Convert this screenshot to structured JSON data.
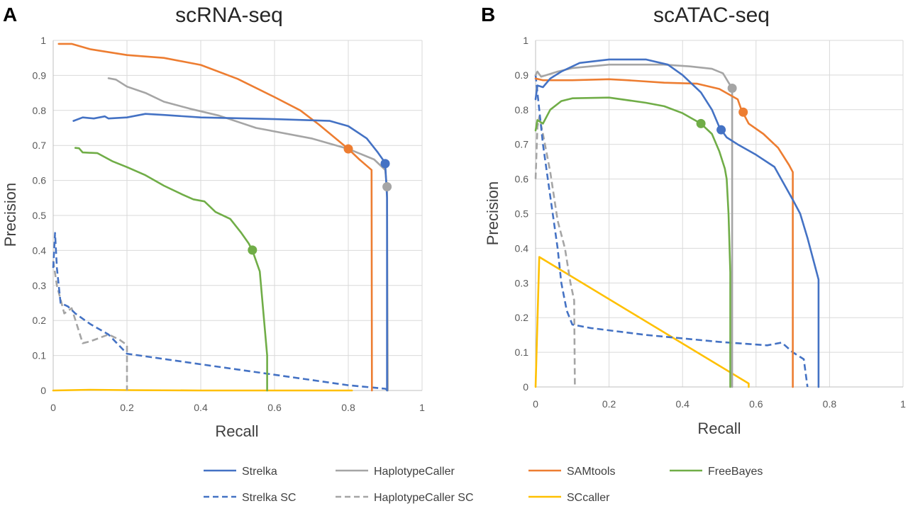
{
  "chart_data": [
    {
      "type": "line",
      "panel": "A",
      "title": "scRNA-seq",
      "xlabel": "Recall",
      "ylabel": "Precision",
      "xlim": [
        0,
        1
      ],
      "ylim": [
        0,
        1
      ],
      "x_ticks": [
        "0",
        "0.2",
        "0.4",
        "0.6",
        "0.8",
        "1"
      ],
      "y_ticks": [
        "0",
        "0.1",
        "0.2",
        "0.3",
        "0.4",
        "0.5",
        "0.6",
        "0.7",
        "0.8",
        "0.9",
        "1"
      ],
      "series": [
        {
          "name": "Strelka",
          "color": "#4472c4",
          "dash": false,
          "points": [
            [
              0.055,
              0.77
            ],
            [
              0.08,
              0.78
            ],
            [
              0.11,
              0.777
            ],
            [
              0.14,
              0.783
            ],
            [
              0.15,
              0.777
            ],
            [
              0.2,
              0.78
            ],
            [
              0.25,
              0.79
            ],
            [
              0.3,
              0.787
            ],
            [
              0.4,
              0.78
            ],
            [
              0.6,
              0.775
            ],
            [
              0.75,
              0.77
            ],
            [
              0.8,
              0.755
            ],
            [
              0.85,
              0.72
            ],
            [
              0.88,
              0.68
            ],
            [
              0.9,
              0.65
            ],
            [
              0.905,
              0.55
            ],
            [
              0.905,
              0.0
            ]
          ],
          "marker": [
            0.9,
            0.648
          ]
        },
        {
          "name": "HaplotypeCaller",
          "color": "#a5a5a5",
          "dash": false,
          "points": [
            [
              0.15,
              0.892
            ],
            [
              0.17,
              0.888
            ],
            [
              0.2,
              0.868
            ],
            [
              0.25,
              0.85
            ],
            [
              0.3,
              0.825
            ],
            [
              0.37,
              0.805
            ],
            [
              0.45,
              0.785
            ],
            [
              0.55,
              0.75
            ],
            [
              0.7,
              0.72
            ],
            [
              0.8,
              0.69
            ],
            [
              0.87,
              0.66
            ],
            [
              0.9,
              0.63
            ],
            [
              0.905,
              0.58
            ],
            [
              0.907,
              0.0
            ]
          ],
          "marker": [
            0.905,
            0.582
          ]
        },
        {
          "name": "SAMtools",
          "color": "#ed7d31",
          "dash": false,
          "points": [
            [
              0.015,
              0.99
            ],
            [
              0.05,
              0.99
            ],
            [
              0.1,
              0.975
            ],
            [
              0.2,
              0.958
            ],
            [
              0.3,
              0.95
            ],
            [
              0.4,
              0.93
            ],
            [
              0.5,
              0.89
            ],
            [
              0.6,
              0.838
            ],
            [
              0.67,
              0.8
            ],
            [
              0.72,
              0.76
            ],
            [
              0.8,
              0.69
            ],
            [
              0.83,
              0.66
            ],
            [
              0.863,
              0.63
            ],
            [
              0.864,
              0.0
            ]
          ],
          "marker": [
            0.8,
            0.69
          ]
        },
        {
          "name": "FreeBayes",
          "color": "#70ad47",
          "dash": false,
          "points": [
            [
              0.06,
              0.693
            ],
            [
              0.07,
              0.692
            ],
            [
              0.08,
              0.68
            ],
            [
              0.12,
              0.678
            ],
            [
              0.16,
              0.655
            ],
            [
              0.2,
              0.638
            ],
            [
              0.25,
              0.615
            ],
            [
              0.3,
              0.585
            ],
            [
              0.35,
              0.56
            ],
            [
              0.38,
              0.546
            ],
            [
              0.41,
              0.54
            ],
            [
              0.44,
              0.51
            ],
            [
              0.48,
              0.49
            ],
            [
              0.51,
              0.45
            ],
            [
              0.53,
              0.42
            ],
            [
              0.54,
              0.4
            ],
            [
              0.56,
              0.34
            ],
            [
              0.57,
              0.22
            ],
            [
              0.58,
              0.1
            ],
            [
              0.58,
              0.0
            ]
          ],
          "marker": [
            0.54,
            0.401
          ]
        },
        {
          "name": "Strelka SC",
          "color": "#4472c4",
          "dash": true,
          "points": [
            [
              0.0,
              0.35
            ],
            [
              0.005,
              0.45
            ],
            [
              0.01,
              0.35
            ],
            [
              0.015,
              0.3
            ],
            [
              0.02,
              0.25
            ],
            [
              0.04,
              0.24
            ],
            [
              0.06,
              0.22
            ],
            [
              0.1,
              0.19
            ],
            [
              0.15,
              0.16
            ],
            [
              0.2,
              0.105
            ],
            [
              0.4,
              0.075
            ],
            [
              0.6,
              0.045
            ],
            [
              0.8,
              0.015
            ],
            [
              0.9,
              0.005
            ],
            [
              0.91,
              0.0
            ]
          ],
          "marker": null
        },
        {
          "name": "HaplotypeCaller SC",
          "color": "#a5a5a5",
          "dash": true,
          "points": [
            [
              0.0,
              0.37
            ],
            [
              0.01,
              0.3
            ],
            [
              0.03,
              0.22
            ],
            [
              0.05,
              0.235
            ],
            [
              0.08,
              0.135
            ],
            [
              0.1,
              0.14
            ],
            [
              0.15,
              0.16
            ],
            [
              0.18,
              0.145
            ],
            [
              0.2,
              0.13
            ],
            [
              0.2,
              0.0
            ]
          ],
          "marker": null
        },
        {
          "name": "SCcaller",
          "color": "#ffc000",
          "dash": false,
          "points": [
            [
              0.0,
              0.0
            ],
            [
              0.1,
              0.002
            ],
            [
              0.2,
              0.001
            ],
            [
              0.4,
              0.0
            ],
            [
              0.81,
              0.0
            ]
          ],
          "marker": null
        }
      ]
    },
    {
      "type": "line",
      "panel": "B",
      "title": "scATAC-seq",
      "xlabel": "Recall",
      "ylabel": "Precision",
      "xlim": [
        0,
        1
      ],
      "ylim": [
        0,
        1
      ],
      "x_ticks": [
        "0",
        "0.2",
        "0.4",
        "0.6",
        "0.8",
        "1"
      ],
      "y_ticks": [
        "0",
        "0.1",
        "0.2",
        "0.3",
        "0.4",
        "0.5",
        "0.6",
        "0.7",
        "0.8",
        "0.9",
        "1"
      ],
      "series": [
        {
          "name": "Strelka",
          "color": "#4472c4",
          "dash": false,
          "points": [
            [
              0.0,
              0.83
            ],
            [
              0.005,
              0.87
            ],
            [
              0.02,
              0.865
            ],
            [
              0.04,
              0.89
            ],
            [
              0.07,
              0.91
            ],
            [
              0.12,
              0.935
            ],
            [
              0.2,
              0.945
            ],
            [
              0.3,
              0.945
            ],
            [
              0.36,
              0.93
            ],
            [
              0.4,
              0.9
            ],
            [
              0.45,
              0.85
            ],
            [
              0.48,
              0.8
            ],
            [
              0.5,
              0.75
            ],
            [
              0.52,
              0.72
            ],
            [
              0.55,
              0.7
            ],
            [
              0.6,
              0.67
            ],
            [
              0.65,
              0.635
            ],
            [
              0.7,
              0.54
            ],
            [
              0.72,
              0.5
            ],
            [
              0.74,
              0.43
            ],
            [
              0.77,
              0.31
            ],
            [
              0.77,
              0.0
            ]
          ],
          "marker": [
            0.505,
            0.742
          ]
        },
        {
          "name": "HaplotypeCaller",
          "color": "#a5a5a5",
          "dash": false,
          "points": [
            [
              0.0,
              0.9
            ],
            [
              0.005,
              0.91
            ],
            [
              0.015,
              0.895
            ],
            [
              0.03,
              0.9
            ],
            [
              0.06,
              0.91
            ],
            [
              0.1,
              0.92
            ],
            [
              0.2,
              0.93
            ],
            [
              0.35,
              0.93
            ],
            [
              0.42,
              0.925
            ],
            [
              0.48,
              0.918
            ],
            [
              0.51,
              0.905
            ],
            [
              0.53,
              0.87
            ],
            [
              0.535,
              0.862
            ],
            [
              0.535,
              0.0
            ]
          ],
          "marker": [
            0.535,
            0.862
          ]
        },
        {
          "name": "SAMtools",
          "color": "#ed7d31",
          "dash": false,
          "points": [
            [
              0.0,
              0.89
            ],
            [
              0.02,
              0.885
            ],
            [
              0.1,
              0.885
            ],
            [
              0.2,
              0.888
            ],
            [
              0.25,
              0.885
            ],
            [
              0.35,
              0.878
            ],
            [
              0.44,
              0.875
            ],
            [
              0.5,
              0.86
            ],
            [
              0.55,
              0.83
            ],
            [
              0.56,
              0.8
            ],
            [
              0.58,
              0.76
            ],
            [
              0.62,
              0.73
            ],
            [
              0.66,
              0.69
            ],
            [
              0.69,
              0.64
            ],
            [
              0.7,
              0.62
            ],
            [
              0.7,
              0.0
            ]
          ],
          "marker": [
            0.565,
            0.793
          ]
        },
        {
          "name": "FreeBayes",
          "color": "#70ad47",
          "dash": false,
          "points": [
            [
              0.0,
              0.74
            ],
            [
              0.005,
              0.77
            ],
            [
              0.02,
              0.76
            ],
            [
              0.04,
              0.8
            ],
            [
              0.07,
              0.825
            ],
            [
              0.1,
              0.833
            ],
            [
              0.2,
              0.835
            ],
            [
              0.3,
              0.82
            ],
            [
              0.35,
              0.81
            ],
            [
              0.4,
              0.79
            ],
            [
              0.45,
              0.76
            ],
            [
              0.48,
              0.73
            ],
            [
              0.5,
              0.68
            ],
            [
              0.515,
              0.63
            ],
            [
              0.52,
              0.6
            ],
            [
              0.525,
              0.5
            ],
            [
              0.53,
              0.33
            ],
            [
              0.53,
              0.0
            ]
          ],
          "marker": [
            0.45,
            0.76
          ]
        },
        {
          "name": "Strelka SC",
          "color": "#4472c4",
          "dash": true,
          "points": [
            [
              0.0,
              0.9
            ],
            [
              0.005,
              0.85
            ],
            [
              0.01,
              0.8
            ],
            [
              0.02,
              0.7
            ],
            [
              0.04,
              0.55
            ],
            [
              0.06,
              0.4
            ],
            [
              0.07,
              0.3
            ],
            [
              0.085,
              0.22
            ],
            [
              0.1,
              0.18
            ],
            [
              0.15,
              0.17
            ],
            [
              0.3,
              0.15
            ],
            [
              0.5,
              0.13
            ],
            [
              0.63,
              0.12
            ],
            [
              0.67,
              0.128
            ],
            [
              0.7,
              0.1
            ],
            [
              0.73,
              0.08
            ],
            [
              0.74,
              0.0
            ]
          ],
          "marker": null
        },
        {
          "name": "HaplotypeCaller SC",
          "color": "#a5a5a5",
          "dash": true,
          "points": [
            [
              0.0,
              0.6
            ],
            [
              0.005,
              0.75
            ],
            [
              0.01,
              0.78
            ],
            [
              0.02,
              0.73
            ],
            [
              0.04,
              0.62
            ],
            [
              0.06,
              0.48
            ],
            [
              0.08,
              0.4
            ],
            [
              0.095,
              0.3
            ],
            [
              0.105,
              0.25
            ],
            [
              0.107,
              0.0
            ]
          ],
          "marker": null
        },
        {
          "name": "SCcaller",
          "color": "#ffc000",
          "dash": false,
          "points": [
            [
              0.0,
              0.0
            ],
            [
              0.01,
              0.375
            ],
            [
              0.58,
              0.01
            ],
            [
              0.58,
              0.0
            ]
          ],
          "marker": null
        }
      ]
    }
  ],
  "legend": [
    {
      "label": "Strelka",
      "color": "#4472c4",
      "dash": false
    },
    {
      "label": "HaplotypeCaller",
      "color": "#a5a5a5",
      "dash": false
    },
    {
      "label": "SAMtools",
      "color": "#ed7d31",
      "dash": false
    },
    {
      "label": "FreeBayes",
      "color": "#70ad47",
      "dash": false
    },
    {
      "label": "Strelka SC",
      "color": "#4472c4",
      "dash": true
    },
    {
      "label": "HaplotypeCaller SC",
      "color": "#a5a5a5",
      "dash": true
    },
    {
      "label": "SCcaller",
      "color": "#ffc000",
      "dash": false
    }
  ]
}
